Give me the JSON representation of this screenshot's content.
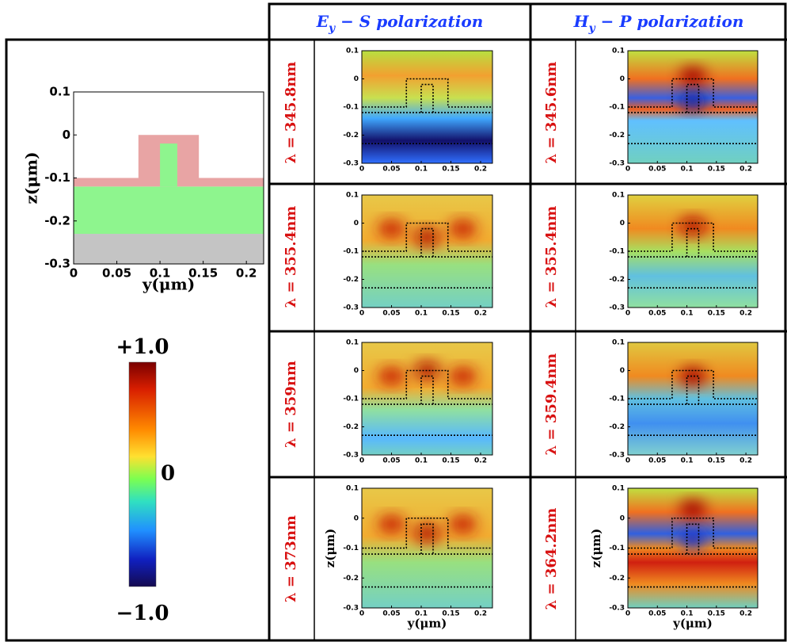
{
  "headers": [
    {
      "symbol": "E",
      "subscript": "y",
      "text": " − S polarization"
    },
    {
      "symbol": "H",
      "subscript": "y",
      "text": " − P polarization"
    }
  ],
  "axes": {
    "xlabel": "y(μm)",
    "ylabel": "z(μm)",
    "xlim": [
      0,
      0.22
    ],
    "ylim": [
      -0.3,
      0.1
    ],
    "xticks": [
      0,
      0.05,
      0.1,
      0.15,
      0.2
    ],
    "yticks": [
      0.1,
      0,
      -0.1,
      -0.2,
      -0.3
    ]
  },
  "structure": {
    "ridge": [
      0.075,
      0.145
    ],
    "ridge_top": 0,
    "core": [
      0.1,
      0.12
    ],
    "core_top": -0.02,
    "cladding_top": -0.1,
    "guide": [
      -0.12,
      -0.23
    ]
  },
  "colorbar": {
    "ticks": [
      {
        "value": 1,
        "label": "+1.0"
      },
      0,
      {
        "value": -1,
        "label": "−1.0"
      }
    ]
  },
  "rows": [
    {
      "s_label": "λ = 345.8nm",
      "p_label": "λ = 345.6nm"
    },
    {
      "s_label": "λ = 355.4nm",
      "p_label": "λ = 355.4nm"
    },
    {
      "s_label": "λ = 359nm",
      "p_label": "λ = 359.4nm"
    },
    {
      "s_label": "λ = 373nm",
      "p_label": "λ = 364.2nm"
    }
  ]
}
